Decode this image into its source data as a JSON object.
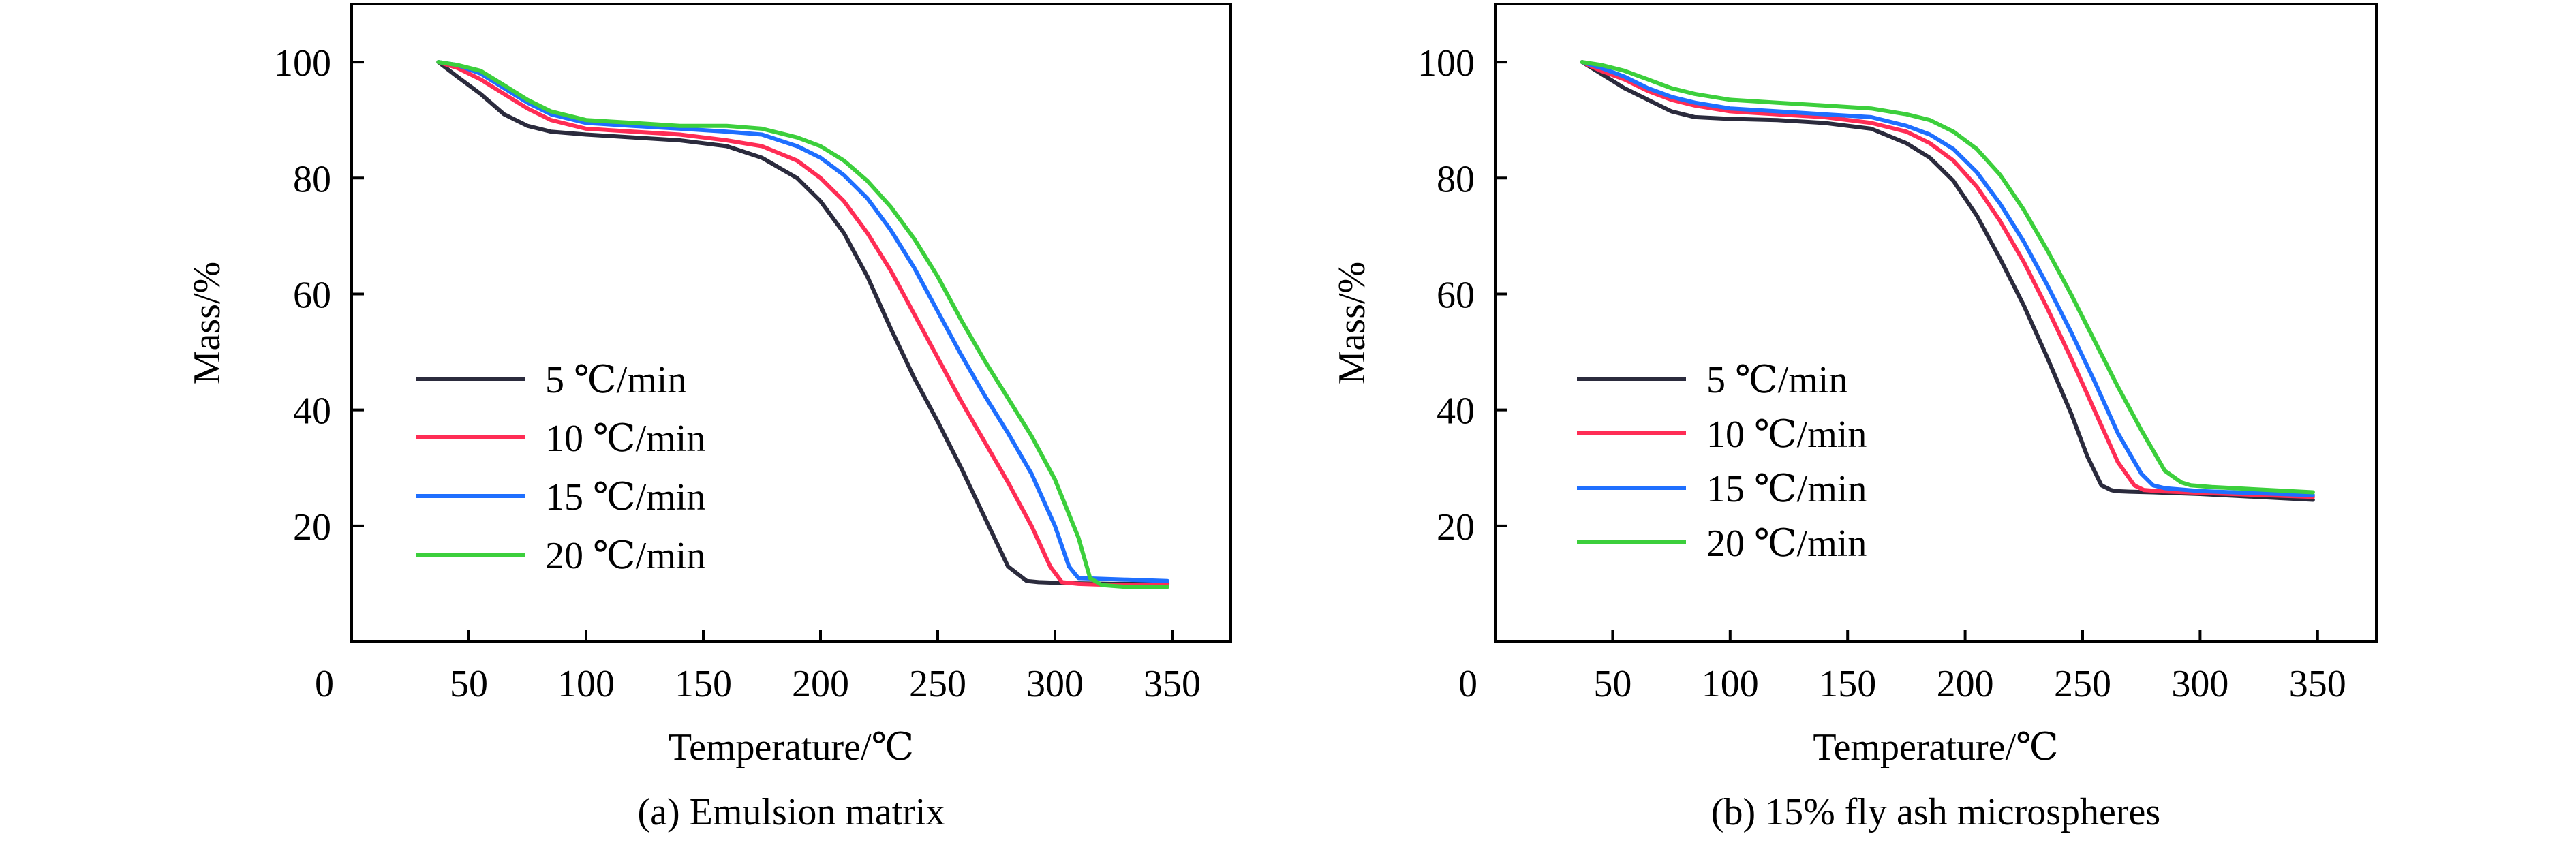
{
  "chart_data": [
    {
      "type": "line",
      "caption": "(a) Emulsion matrix",
      "xlabel": "Temperature/℃",
      "ylabel": "Mass/%",
      "xlim": [
        0,
        375
      ],
      "ylim": [
        0,
        110
      ],
      "origin_label": "0",
      "x_ticks": [
        50,
        100,
        150,
        200,
        250,
        300,
        350
      ],
      "y_ticks": [
        20,
        40,
        60,
        80,
        100
      ],
      "legend_placement": "lower-left",
      "grid": false,
      "series": [
        {
          "name": "5 ℃/min",
          "color": "#2b2b3d",
          "x": [
            37,
            45,
            55,
            65,
            75,
            85,
            100,
            120,
            140,
            160,
            175,
            190,
            200,
            210,
            220,
            230,
            240,
            250,
            260,
            270,
            280,
            288,
            293,
            300,
            310,
            325,
            348
          ],
          "y": [
            100,
            97.5,
            94.5,
            91,
            89,
            88,
            87.5,
            87,
            86.5,
            85.5,
            83.5,
            80,
            76,
            70.5,
            63,
            54,
            45.5,
            38,
            30,
            21.5,
            13,
            10.5,
            10.3,
            10.2,
            10.1,
            10,
            10
          ]
        },
        {
          "name": "10 ℃/min",
          "color": "#ff2d55",
          "x": [
            37,
            45,
            55,
            65,
            75,
            85,
            100,
            120,
            140,
            160,
            175,
            190,
            200,
            210,
            220,
            230,
            240,
            250,
            260,
            270,
            280,
            290,
            298,
            303,
            310,
            325,
            348
          ],
          "y": [
            100,
            99,
            97,
            94.5,
            92,
            90,
            88.5,
            88,
            87.5,
            86.5,
            85.5,
            83,
            80,
            76,
            70.5,
            64,
            56.5,
            49,
            41.5,
            34.5,
            27.5,
            20,
            13,
            10.3,
            10,
            9.8,
            9.8
          ]
        },
        {
          "name": "15 ℃/min",
          "color": "#1f6fff",
          "x": [
            37,
            45,
            55,
            65,
            75,
            85,
            100,
            120,
            140,
            160,
            175,
            190,
            200,
            210,
            220,
            230,
            240,
            250,
            260,
            270,
            280,
            290,
            300,
            306,
            310,
            325,
            348
          ],
          "y": [
            100,
            99.5,
            98,
            95.5,
            93,
            91,
            89.5,
            89,
            88.5,
            88,
            87.5,
            85.5,
            83.5,
            80.5,
            76.5,
            71,
            64.5,
            57,
            49.5,
            42.5,
            36,
            29,
            20,
            13,
            11,
            10.8,
            10.5
          ]
        },
        {
          "name": "20 ℃/min",
          "color": "#3ccf3c",
          "x": [
            37,
            45,
            55,
            65,
            75,
            85,
            100,
            120,
            140,
            160,
            175,
            190,
            200,
            210,
            220,
            230,
            240,
            250,
            260,
            270,
            280,
            290,
            300,
            310,
            315,
            320,
            330,
            348
          ],
          "y": [
            100,
            99.5,
            98.5,
            96,
            93.5,
            91.5,
            90,
            89.5,
            89,
            89,
            88.5,
            87,
            85.5,
            83,
            79.5,
            75,
            69.5,
            63,
            55.5,
            48.5,
            42,
            35.5,
            28,
            18,
            11,
            9.8,
            9.5,
            9.5
          ]
        }
      ]
    },
    {
      "type": "line",
      "caption": "(b) 15% fly ash microspheres",
      "xlabel": "Temperature/℃",
      "ylabel": "Mass/%",
      "xlim": [
        0,
        375
      ],
      "ylim": [
        0,
        110
      ],
      "origin_label": "0",
      "x_ticks": [
        50,
        100,
        150,
        200,
        250,
        300,
        350
      ],
      "y_ticks": [
        20,
        40,
        60,
        80,
        100
      ],
      "legend_placement": "lower-left",
      "grid": false,
      "series": [
        {
          "name": "5 ℃/min",
          "color": "#2b2b3d",
          "x": [
            37,
            45,
            55,
            65,
            75,
            85,
            100,
            120,
            140,
            160,
            175,
            185,
            195,
            205,
            215,
            225,
            235,
            245,
            252,
            258,
            262,
            264,
            270,
            280,
            300,
            348
          ],
          "y": [
            100,
            98,
            95.5,
            93.5,
            91.5,
            90.5,
            90.2,
            90,
            89.5,
            88.5,
            86,
            83.5,
            79.5,
            73.5,
            66,
            58,
            49,
            39.5,
            32,
            27,
            26.2,
            26,
            25.9,
            25.8,
            25.5,
            24.5
          ]
        },
        {
          "name": "10 ℃/min",
          "color": "#ff2d55",
          "x": [
            37,
            45,
            55,
            65,
            75,
            85,
            100,
            120,
            140,
            160,
            175,
            185,
            195,
            205,
            215,
            225,
            235,
            245,
            255,
            265,
            272,
            276,
            282,
            300,
            348
          ],
          "y": [
            100,
            98.5,
            97,
            95,
            93.5,
            92.5,
            91.5,
            91,
            90.5,
            89.5,
            88,
            86,
            83,
            78.5,
            72.5,
            65.5,
            57.5,
            49,
            40,
            31,
            27,
            26.2,
            26,
            25.7,
            25
          ]
        },
        {
          "name": "15 ℃/min",
          "color": "#1f6fff",
          "x": [
            37,
            45,
            55,
            65,
            75,
            85,
            100,
            120,
            140,
            160,
            175,
            185,
            195,
            205,
            215,
            225,
            235,
            245,
            255,
            265,
            275,
            280,
            285,
            300,
            348
          ],
          "y": [
            100,
            99,
            97.5,
            95.5,
            94,
            93,
            92,
            91.5,
            91,
            90.5,
            89,
            87.5,
            85,
            81,
            75.5,
            69,
            61.5,
            53.5,
            45,
            36,
            29,
            27,
            26.5,
            26,
            25.3
          ]
        },
        {
          "name": "20 ℃/min",
          "color": "#3ccf3c",
          "x": [
            37,
            45,
            55,
            65,
            75,
            85,
            100,
            120,
            140,
            160,
            175,
            185,
            195,
            205,
            215,
            225,
            235,
            245,
            255,
            265,
            275,
            285,
            292,
            296,
            305,
            348
          ],
          "y": [
            100,
            99.5,
            98.5,
            97,
            95.5,
            94.5,
            93.5,
            93,
            92.5,
            92,
            91,
            90,
            88,
            85,
            80.5,
            74.5,
            67.5,
            60,
            52,
            44,
            36.5,
            29.5,
            27.5,
            27,
            26.7,
            25.8
          ]
        }
      ]
    }
  ]
}
